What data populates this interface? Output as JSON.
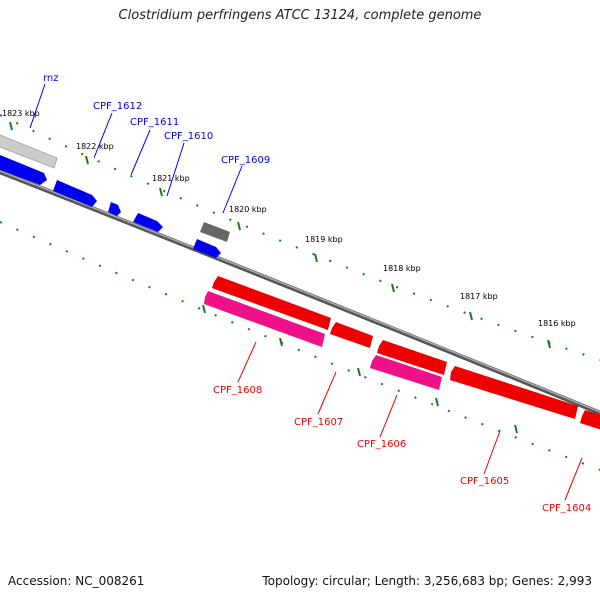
{
  "title": "Clostridium perfringens ATCC 13124, complete genome",
  "footer": {
    "accession": "Accession: NC_008261",
    "info": "Topology: circular; Length: 3,256,683 bp; Genes: 2,993"
  },
  "ticks": [
    "1823 kbp",
    "1822 kbp",
    "1821 kbp",
    "1820 kbp",
    "1819 kbp",
    "1818 kbp",
    "1817 kbp",
    "1816 kbp"
  ],
  "genes_forward": [
    "rnz",
    "CPF_1612",
    "CPF_1611",
    "CPF_1610",
    "CPF_1609"
  ],
  "genes_reverse": [
    "CPF_1608",
    "CPF_1607",
    "CPF_1606",
    "CPF_1605",
    "CPF_1604"
  ],
  "colors": {
    "forward_gene": "#0000ee",
    "reverse_gene": "#ee0000",
    "rna_gene": "#ee1188",
    "other_gene": "#777777",
    "backbone": "#888888",
    "tick": "#1a7a1a"
  }
}
